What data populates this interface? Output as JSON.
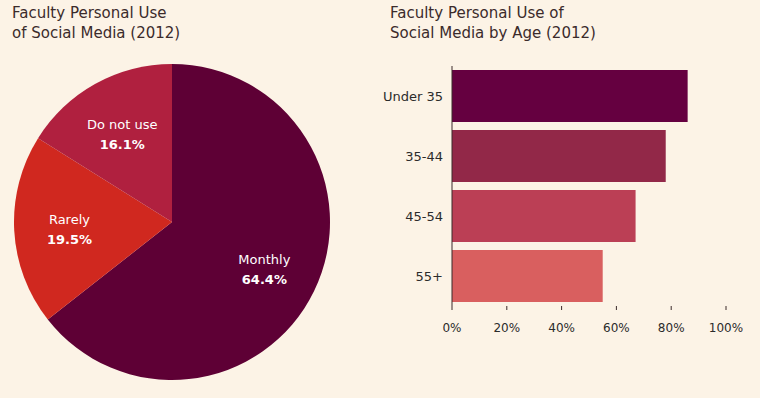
{
  "chart_data": [
    {
      "type": "pie",
      "title": "Faculty Personal Use\nof Social Media (2012)",
      "categories": [
        "Monthly",
        "Rarely",
        "Do not use"
      ],
      "values": [
        64.4,
        19.5,
        16.1
      ],
      "value_labels": [
        "64.4%",
        "19.5%",
        "16.1%"
      ],
      "colors": [
        "#5e0035",
        "#d0281f",
        "#b0203f"
      ],
      "data_labels": true
    },
    {
      "type": "bar",
      "title": "Faculty Personal Use of\nSocial Media by Age (2012)",
      "orientation": "horizontal",
      "categories": [
        "Under 35",
        "35-44",
        "45-54",
        "55+"
      ],
      "values": [
        86,
        78,
        67,
        55
      ],
      "colors": [
        "#650040",
        "#922848",
        "#bb3f55",
        "#d95f5f"
      ],
      "xlim": [
        0,
        100
      ],
      "xticks": [
        {
          "value": 0,
          "label": "0%"
        },
        {
          "value": 20,
          "label": "20%"
        },
        {
          "value": 40,
          "label": "40%"
        },
        {
          "value": 60,
          "label": "60%"
        },
        {
          "value": 80,
          "label": "80%"
        },
        {
          "value": 100,
          "label": "100%"
        }
      ]
    }
  ]
}
